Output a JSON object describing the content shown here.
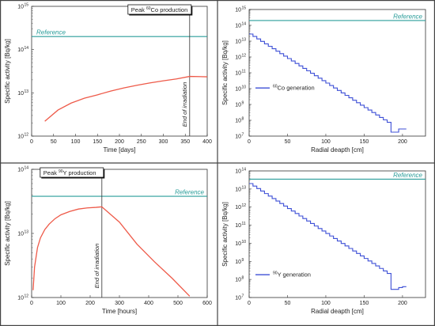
{
  "panels": [
    {
      "id": "a",
      "type": "line",
      "xlabel": "Time [days]",
      "ylabel": "Specific activity [Bq/kg]",
      "xlim": [
        0,
        400
      ],
      "ylim_exp": [
        12,
        15
      ],
      "yscale": "log",
      "xticks": [
        "0",
        "50",
        "100",
        "150",
        "200",
        "250",
        "300",
        "350",
        "400"
      ],
      "yticks": [
        "10",
        "10",
        "10",
        "10"
      ],
      "ytick_exps": [
        "12",
        "13",
        "14",
        "15"
      ],
      "annotation": {
        "prefix": "Peak ",
        "sup": "60",
        "suffix": "Co production"
      },
      "reference": {
        "label": "Reference",
        "value": 200000000000000.0
      },
      "end_marker": {
        "label": "End of irradiation",
        "x": 360
      },
      "series": [
        {
          "style": "smooth",
          "x": [
            30,
            60,
            90,
            120,
            150,
            180,
            210,
            240,
            270,
            300,
            330,
            360,
            400
          ],
          "values": [
            2200000000000.0,
            4000000000000.0,
            5800000000000.0,
            7500000000000.0,
            9000000000000.0,
            11000000000000.0,
            13000000000000.0,
            15000000000000.0,
            17000000000000.0,
            19000000000000.0,
            21000000000000.0,
            24000000000000.0,
            23500000000000.0
          ]
        }
      ],
      "colors": {
        "series": "#ee5a49",
        "reference": "#2a9d9a",
        "reference_label": "#2a9d9a"
      }
    },
    {
      "id": "b",
      "type": "line",
      "xlabel": "Radial deapth [cm]",
      "ylabel": "Specific activity [Bq/kg]",
      "xlim": [
        0,
        230
      ],
      "ylim_exp": [
        7,
        15
      ],
      "yscale": "log",
      "xticks": [
        "0",
        "50",
        "100",
        "150",
        "200"
      ],
      "yticks": [
        "10",
        "10",
        "10",
        "10",
        "10",
        "10",
        "10",
        "10",
        "10"
      ],
      "ytick_exps": [
        "7",
        "8",
        "9",
        "10",
        "11",
        "12",
        "13",
        "14",
        "15"
      ],
      "reference": {
        "label": "Reference",
        "value": 200000000000000.0
      },
      "legend": {
        "sup": "60",
        "suffix": "Co generation",
        "position": "center-left"
      },
      "series": [
        {
          "style": "step",
          "x": [
            0,
            200
          ],
          "log_start": 13.45,
          "log_step_per_5cm": -0.155,
          "step_width": 5,
          "n_steps": 37,
          "tail_x": [
            185,
            190,
            195,
            200,
            205
          ],
          "tail_log": [
            7.25,
            7.25,
            7.45,
            7.45,
            7.45
          ]
        }
      ],
      "colors": {
        "series": "#3d4fd6",
        "reference": "#2a9d9a",
        "reference_label": "#2a9d9a"
      }
    },
    {
      "id": "c",
      "type": "line",
      "xlabel": "Time [hours]",
      "ylabel": "Specific activity [Bq/kg]",
      "xlim": [
        0,
        600
      ],
      "ylim_exp": [
        12,
        14
      ],
      "yscale": "log",
      "xticks": [
        "0",
        "100",
        "200",
        "300",
        "400",
        "500",
        "600"
      ],
      "yticks": [
        "10",
        "10",
        "10"
      ],
      "ytick_exps": [
        "12",
        "13",
        "14"
      ],
      "annotation": {
        "prefix": "Peak ",
        "sup": "90",
        "suffix": "Y production"
      },
      "reference": {
        "label": "Reference",
        "value": 38000000000000.0
      },
      "end_marker": {
        "label": "End of irradiation",
        "x": 240
      },
      "series": [
        {
          "style": "smooth",
          "x": [
            5,
            10,
            20,
            30,
            45,
            60,
            80,
            100,
            130,
            160,
            190,
            220,
            240,
            300,
            360,
            420,
            480,
            540
          ],
          "values": [
            1300000000000.0,
            3000000000000.0,
            6000000000000.0,
            8500000000000.0,
            11500000000000.0,
            14000000000000.0,
            17000000000000.0,
            19500000000000.0,
            22000000000000.0,
            24000000000000.0,
            25000000000000.0,
            25500000000000.0,
            26000000000000.0,
            15000000000000.0,
            6800000000000.0,
            3600000000000.0,
            2000000000000.0,
            1050000000000.0
          ]
        }
      ],
      "colors": {
        "series": "#ee5a49",
        "reference": "#2a9d9a",
        "reference_label": "#2a9d9a"
      }
    },
    {
      "id": "d",
      "type": "line",
      "xlabel": "Radial deapth [cm]",
      "ylabel": "Specific activity [Bq/kg]",
      "xlim": [
        0,
        230
      ],
      "ylim_exp": [
        7,
        14
      ],
      "yscale": "log",
      "xticks": [
        "0",
        "50",
        "100",
        "150",
        "200"
      ],
      "yticks": [
        "10",
        "10",
        "10",
        "10",
        "10",
        "10",
        "10",
        "10"
      ],
      "ytick_exps": [
        "7",
        "8",
        "9",
        "10",
        "11",
        "12",
        "13",
        "14"
      ],
      "reference": {
        "label": "Reference",
        "value": 35000000000000.0
      },
      "legend": {
        "sup": "90",
        "suffix": "Y generation",
        "position": "bottom-left"
      },
      "series": [
        {
          "style": "step",
          "x": [
            0,
            200
          ],
          "log_start": 13.3,
          "log_step_per_5cm": -0.138,
          "step_width": 5,
          "n_steps": 37,
          "tail_x": [
            185,
            190,
            195,
            200,
            205
          ],
          "tail_log": [
            7.45,
            7.45,
            7.55,
            7.6,
            7.6
          ]
        }
      ],
      "colors": {
        "series": "#3d4fd6",
        "reference": "#2a9d9a",
        "reference_label": "#2a9d9a"
      }
    }
  ]
}
